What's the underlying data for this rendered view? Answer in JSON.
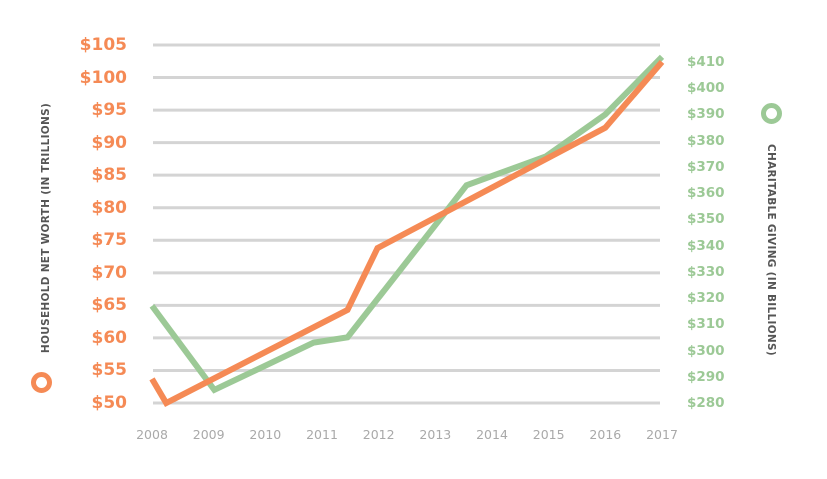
{
  "chart_data": {
    "type": "line",
    "title": "",
    "xlabel": "",
    "x": [
      "2008",
      "2009",
      "2010",
      "2011",
      "2012",
      "2013",
      "2014",
      "2015",
      "2016",
      "2017"
    ],
    "y_left": {
      "label": "HOUSEHOLD NET WORTH (IN TRILLIONS)",
      "ticks": [
        "$50",
        "$55",
        "$60",
        "$65",
        "$70",
        "$75",
        "$80",
        "$85",
        "$90",
        "$95",
        "$100",
        "$105"
      ],
      "range": [
        50,
        105
      ],
      "color": "#f58a55"
    },
    "y_right": {
      "label": "CHARITABLE GIVING (IN BILLIONS)",
      "ticks": [
        "$280",
        "$290",
        "$300",
        "$310",
        "$320",
        "$330",
        "$340",
        "$350",
        "$360",
        "$370",
        "$380",
        "$390",
        "$400",
        "$410"
      ],
      "range": [
        280,
        410
      ],
      "color": "#9cc996"
    },
    "grid": true,
    "legend_position": "axis-labels",
    "series": [
      {
        "name": "Household Net Worth (in trillions)",
        "axis": "left",
        "color": "#f58a55",
        "points": [
          {
            "x": 2008.0,
            "y": 53.7
          },
          {
            "x": 2008.25,
            "y": 50.0
          },
          {
            "x": 2011.45,
            "y": 64.3
          },
          {
            "x": 2011.98,
            "y": 73.8
          },
          {
            "x": 2016.0,
            "y": 92.3
          },
          {
            "x": 2017.0,
            "y": 102.4
          }
        ]
      },
      {
        "name": "Charitable Giving (in billions)",
        "axis": "right",
        "color": "#9cc996",
        "points": [
          {
            "x": 2008.0,
            "y": 317
          },
          {
            "x": 2009.1,
            "y": 285
          },
          {
            "x": 2010.85,
            "y": 303
          },
          {
            "x": 2011.45,
            "y": 305
          },
          {
            "x": 2013.55,
            "y": 363
          },
          {
            "x": 2014.95,
            "y": 374
          },
          {
            "x": 2016.0,
            "y": 390
          },
          {
            "x": 2017.0,
            "y": 412
          }
        ]
      }
    ]
  }
}
